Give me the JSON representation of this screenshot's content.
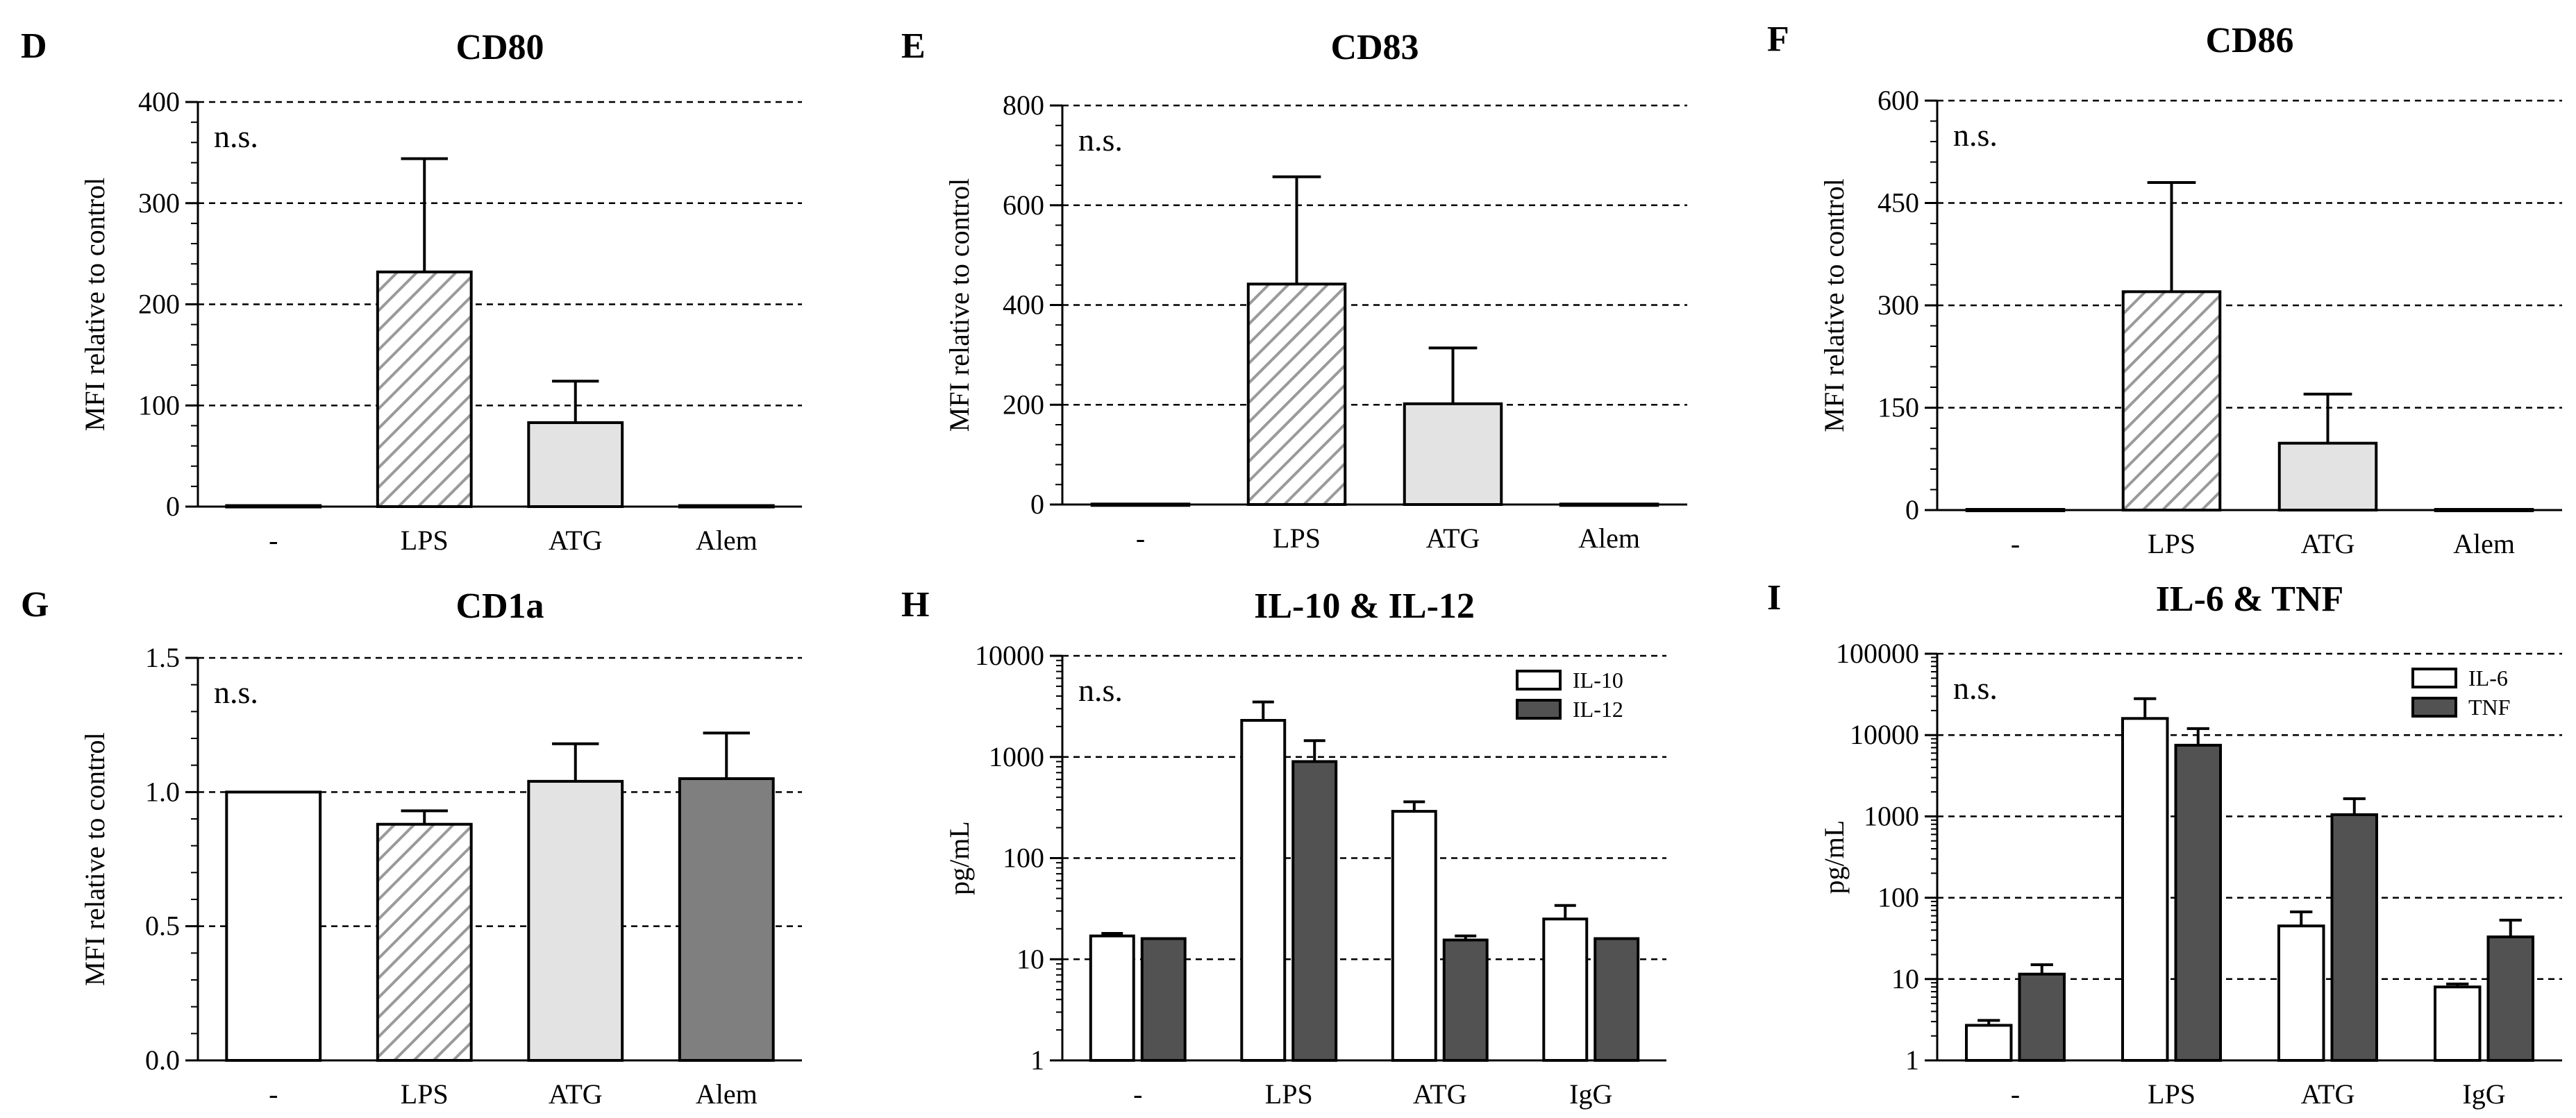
{
  "colors": {
    "white": "#ffffff",
    "hatch": "#9a9a9a",
    "light": "#e3e3e3",
    "mid": "#7f7f7f",
    "dark": "#525252",
    "axis": "#000000"
  },
  "chart_data": [
    {
      "id": "D",
      "panel": "D",
      "title": "CD80",
      "type": "bar",
      "ylabel": "MFI relative to control",
      "scale": "linear",
      "ylim": [
        0,
        400
      ],
      "yticks": [
        "0",
        "100",
        "200",
        "300",
        "400"
      ],
      "grid": "dashed",
      "annotation": "n.s.",
      "categories": [
        "-",
        "LPS",
        "ATG",
        "Alem"
      ],
      "series": [
        {
          "name": "MFI",
          "values": [
            1,
            232,
            83,
            1
          ],
          "errors": [
            0,
            112,
            41,
            0
          ],
          "styles": [
            "white",
            "hatch",
            "light",
            "white"
          ]
        }
      ]
    },
    {
      "id": "E",
      "panel": "E",
      "title": "CD83",
      "type": "bar",
      "ylabel": "MFI relative to control",
      "scale": "linear",
      "ylim": [
        0,
        800
      ],
      "yticks": [
        "0",
        "200",
        "400",
        "600",
        "800"
      ],
      "grid": "dashed",
      "annotation": "n.s.",
      "categories": [
        "-",
        "LPS",
        "ATG",
        "Alem"
      ],
      "series": [
        {
          "name": "MFI",
          "values": [
            1,
            442,
            202,
            1
          ],
          "errors": [
            0,
            215,
            112,
            0
          ],
          "styles": [
            "white",
            "hatch",
            "light",
            "white"
          ]
        }
      ]
    },
    {
      "id": "F",
      "panel": "F",
      "title": "CD86",
      "type": "bar",
      "ylabel": "MFI relative to control",
      "scale": "linear",
      "ylim": [
        0,
        600
      ],
      "yticks": [
        "0",
        "150",
        "300",
        "450",
        "600"
      ],
      "grid": "dashed",
      "annotation": "n.s.",
      "categories": [
        "-",
        "LPS",
        "ATG",
        "Alem"
      ],
      "series": [
        {
          "name": "MFI",
          "values": [
            1,
            320,
            98,
            1
          ],
          "errors": [
            0,
            160,
            72,
            0
          ],
          "styles": [
            "white",
            "hatch",
            "light",
            "white"
          ]
        }
      ]
    },
    {
      "id": "G",
      "panel": "G",
      "title": "CD1a",
      "type": "bar",
      "ylabel": "MFI relative to control",
      "scale": "linear",
      "ylim": [
        0,
        1.5
      ],
      "yticks": [
        "0.0",
        "0.5",
        "1.0",
        "1.5"
      ],
      "grid": "dashed",
      "annotation": "n.s.",
      "categories": [
        "-",
        "LPS",
        "ATG",
        "Alem"
      ],
      "series": [
        {
          "name": "MFI",
          "values": [
            1.0,
            0.88,
            1.04,
            1.05
          ],
          "errors": [
            0,
            0.05,
            0.14,
            0.17
          ],
          "styles": [
            "white",
            "hatch",
            "light",
            "mid"
          ]
        }
      ]
    },
    {
      "id": "H",
      "panel": "H",
      "title": "IL-10 & IL-12",
      "type": "bar",
      "ylabel": "pg/mL",
      "scale": "log",
      "ylim": [
        1,
        10000
      ],
      "yticks": [
        "1",
        "10",
        "100",
        "1000",
        "10000"
      ],
      "grid": "dashed",
      "annotation": "n.s.",
      "legend_position": "top-right",
      "categories": [
        "-",
        "LPS",
        "ATG",
        "IgG"
      ],
      "series": [
        {
          "name": "IL-10",
          "values": [
            17,
            2300,
            290,
            25
          ],
          "errors": [
            1,
            1200,
            70,
            9
          ],
          "style": "white"
        },
        {
          "name": "IL-12",
          "values": [
            16,
            900,
            15.5,
            16
          ],
          "errors": [
            0,
            550,
            1.5,
            0
          ],
          "style": "dark"
        }
      ]
    },
    {
      "id": "I",
      "panel": "I",
      "title": "IL-6 & TNF",
      "type": "bar",
      "ylabel": "pg/mL",
      "scale": "log",
      "ylim": [
        1,
        100000
      ],
      "yticks": [
        "1",
        "10",
        "100",
        "1000",
        "10000",
        "100000"
      ],
      "grid": "dashed",
      "annotation": "n.s.",
      "legend_position": "top-right",
      "categories": [
        "-",
        "LPS",
        "ATG",
        "IgG"
      ],
      "series": [
        {
          "name": "IL-6",
          "values": [
            2.7,
            16000,
            45,
            8
          ],
          "errors": [
            0.4,
            12000,
            22,
            0.7
          ],
          "style": "white"
        },
        {
          "name": "TNF",
          "values": [
            11.5,
            7500,
            1050,
            33
          ],
          "errors": [
            3.5,
            4500,
            600,
            20
          ],
          "style": "dark"
        }
      ]
    }
  ]
}
